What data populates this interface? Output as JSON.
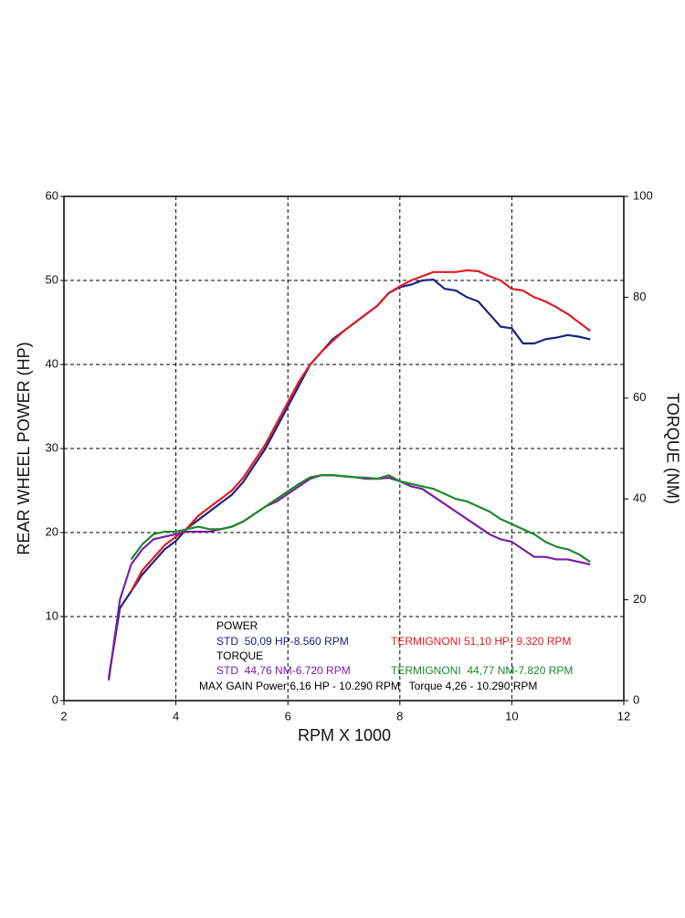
{
  "chart_data": {
    "type": "line",
    "xlabel": "RPM X 1000",
    "ylabel": "REAR WHEEL POWER (HP)",
    "y2label": "TORQUE (NM)",
    "x": [
      2.8,
      3.0,
      3.2,
      3.4,
      3.6,
      3.8,
      4.0,
      4.2,
      4.4,
      4.6,
      4.8,
      5.0,
      5.2,
      5.4,
      5.6,
      5.8,
      6.0,
      6.2,
      6.4,
      6.6,
      6.8,
      7.0,
      7.2,
      7.4,
      7.6,
      7.8,
      8.0,
      8.2,
      8.4,
      8.6,
      8.8,
      9.0,
      9.2,
      9.4,
      9.6,
      9.8,
      10.0,
      10.2,
      10.4,
      10.6,
      10.8,
      11.0,
      11.2,
      11.4
    ],
    "xlim": [
      2,
      12
    ],
    "xticks": [
      2,
      4,
      6,
      8,
      10,
      12
    ],
    "ylim": [
      0,
      60
    ],
    "yticks": [
      0,
      10,
      20,
      30,
      40,
      50,
      60
    ],
    "y2lim": [
      0,
      100
    ],
    "y2ticks": [
      0,
      20,
      40,
      60,
      80,
      100
    ],
    "grid": true,
    "groups": [
      "POWER",
      "TORQUE"
    ],
    "series": [
      {
        "name": "STD  50,09 HP-8.560 RPM",
        "color": "#1a237e",
        "axis": "y",
        "values": [
          2.7,
          11,
          13,
          15,
          16.5,
          18,
          19,
          20.5,
          21.5,
          22.5,
          23.5,
          24.5,
          26,
          28,
          30,
          32.5,
          35,
          37.5,
          40,
          41.5,
          43,
          44,
          45,
          46,
          47,
          48.5,
          49.2,
          49.5,
          50,
          50.1,
          49,
          48.8,
          48,
          47.5,
          46,
          44.5,
          44.3,
          42.5,
          42.5,
          43,
          43.2,
          43.5,
          43.3,
          43
        ]
      },
      {
        "name": "TERMIGNONI 51,10 HP- 9.320 RPM",
        "color": "#e01b24",
        "axis": "y",
        "values": [
          null,
          null,
          13,
          15.5,
          17,
          18.5,
          19.5,
          20.5,
          22,
          23,
          24,
          25,
          26.5,
          28.5,
          30.5,
          33,
          35.5,
          38,
          40,
          41.5,
          42.8,
          44,
          45,
          46,
          47,
          48.5,
          49.3,
          50,
          50.5,
          51,
          51,
          51,
          51.2,
          51.1,
          50.5,
          50,
          49,
          48.8,
          48,
          47.5,
          46.8,
          46,
          45,
          44
        ]
      },
      {
        "name": "STD  44,76 NM-6.720 RPM",
        "color": "#7b1fa2",
        "axis": "y2",
        "values": [
          4,
          20,
          27,
          30,
          32,
          32.5,
          33,
          33.5,
          33.5,
          33.5,
          34,
          34.5,
          35.5,
          37,
          38.5,
          39.5,
          41,
          42.5,
          44,
          44.7,
          44.7,
          44.5,
          44.3,
          44,
          44,
          44.2,
          43.5,
          42.5,
          42,
          40.5,
          39,
          37.5,
          36,
          34.5,
          33,
          32,
          31.5,
          30,
          28.5,
          28.5,
          28,
          28,
          27.5,
          27
        ]
      },
      {
        "name": "TERMIGNONI  44,77 NM-7.820 RPM",
        "color": "#1b8a2a",
        "axis": "y2",
        "values": [
          null,
          null,
          28,
          31,
          33,
          33.5,
          33.5,
          34,
          34.5,
          34,
          34,
          34.5,
          35.5,
          37,
          38.5,
          40,
          41.5,
          43,
          44.3,
          44.7,
          44.7,
          44.5,
          44.3,
          44.2,
          44,
          44.7,
          43.5,
          43,
          42.5,
          42,
          41,
          40,
          39.5,
          38.5,
          37.5,
          36,
          35,
          34,
          33,
          31.5,
          30.5,
          30,
          29,
          27.5
        ]
      }
    ],
    "annotation": "MAX GAIN Power 6,16 HP - 10.290 RPM   Torque 4,26 - 10.290 RPM"
  }
}
